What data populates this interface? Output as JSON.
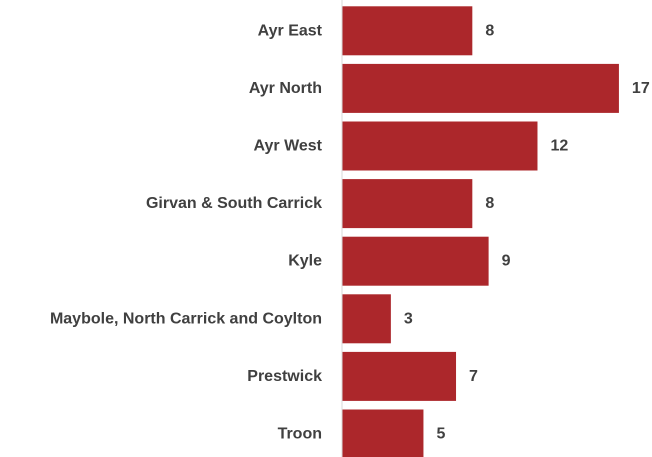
{
  "chart_data": {
    "type": "bar",
    "orientation": "horizontal",
    "categories": [
      "Ayr East",
      "Ayr North",
      "Ayr West",
      "Girvan & South Carrick",
      "Kyle",
      "Maybole, North Carrick and Coylton",
      "Prestwick",
      "Troon"
    ],
    "values": [
      8,
      17,
      12,
      8,
      9,
      3,
      7,
      5
    ],
    "xlim": [
      0,
      17
    ],
    "grid": false,
    "legend": "none",
    "colors": {
      "bar": "#ac272b",
      "axis": "#d9d9d9",
      "text": "#404040"
    }
  }
}
